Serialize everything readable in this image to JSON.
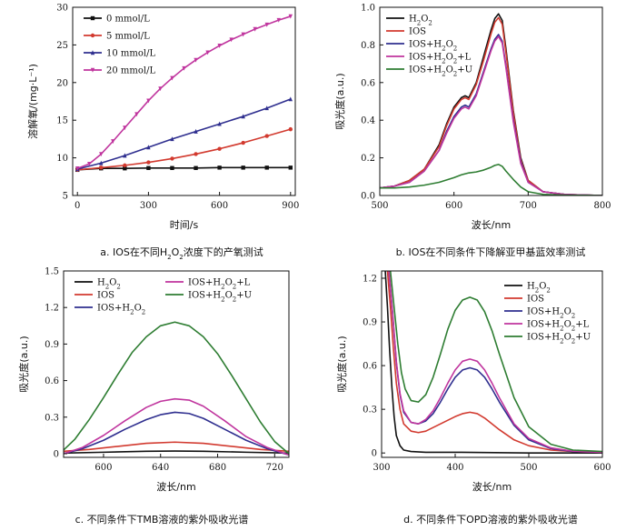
{
  "chart_data": [
    {
      "id": "a",
      "type": "line",
      "caption": "a. IOS在不同H₂O₂浓度下的产氧测试",
      "xlabel": "时间/s",
      "ylabel": "溶解氧/(mg·L⁻¹)",
      "xlim": [
        -20,
        920
      ],
      "ylim": [
        5,
        30
      ],
      "xticks": [
        0,
        300,
        600,
        900
      ],
      "yticks": [
        5,
        10,
        15,
        20,
        25,
        30
      ],
      "legend_position": "top-left",
      "series": [
        {
          "name": "0 mmol/L",
          "color": "#111111",
          "marker": "square",
          "x": [
            0,
            100,
            200,
            300,
            400,
            500,
            600,
            700,
            800,
            900
          ],
          "y": [
            8.4,
            8.6,
            8.6,
            8.65,
            8.65,
            8.65,
            8.7,
            8.7,
            8.7,
            8.7
          ]
        },
        {
          "name": "5 mmol/L",
          "color": "#d23a2f",
          "marker": "circle",
          "x": [
            0,
            100,
            200,
            300,
            400,
            500,
            600,
            700,
            800,
            900
          ],
          "y": [
            8.4,
            8.7,
            9.0,
            9.4,
            9.9,
            10.5,
            11.2,
            12.0,
            12.9,
            13.8
          ]
        },
        {
          "name": "10 mmol/L",
          "color": "#2f2f8f",
          "marker": "triangle",
          "x": [
            0,
            100,
            200,
            300,
            400,
            500,
            600,
            700,
            800,
            900
          ],
          "y": [
            8.5,
            9.3,
            10.3,
            11.4,
            12.5,
            13.5,
            14.5,
            15.5,
            16.6,
            17.8
          ]
        },
        {
          "name": "20 mmol/L",
          "color": "#c0359e",
          "marker": "triangle-down",
          "x": [
            0,
            50,
            100,
            150,
            200,
            250,
            300,
            350,
            400,
            450,
            500,
            550,
            600,
            650,
            700,
            750,
            800,
            850,
            900
          ],
          "y": [
            8.6,
            9.2,
            10.5,
            12.2,
            14.0,
            15.8,
            17.6,
            19.2,
            20.6,
            21.9,
            23.0,
            24.0,
            24.9,
            25.7,
            26.4,
            27.1,
            27.7,
            28.3,
            28.8
          ]
        }
      ]
    },
    {
      "id": "b",
      "type": "line",
      "caption": "b. IOS在不同条件下降解亚甲基蓝效率测试",
      "xlabel": "波长/nm",
      "ylabel": "吸光度(a.u.)",
      "xlim": [
        500,
        800
      ],
      "ylim": [
        0,
        1.0
      ],
      "xticks": [
        500,
        600,
        700,
        800
      ],
      "yticks": [
        0,
        0.2,
        0.4,
        0.6,
        0.8,
        1.0
      ],
      "legend_position": "top-left",
      "series": [
        {
          "name": "H₂O₂",
          "color": "#111111",
          "x": [
            500,
            520,
            540,
            560,
            580,
            590,
            600,
            610,
            615,
            620,
            630,
            640,
            650,
            655,
            660,
            665,
            670,
            680,
            690,
            700,
            720,
            750,
            800
          ],
          "y": [
            0.04,
            0.05,
            0.08,
            0.14,
            0.27,
            0.38,
            0.47,
            0.52,
            0.53,
            0.52,
            0.6,
            0.74,
            0.88,
            0.94,
            0.965,
            0.93,
            0.78,
            0.45,
            0.2,
            0.08,
            0.02,
            0.005,
            0.0
          ]
        },
        {
          "name": "IOS",
          "color": "#d23a2f",
          "x": [
            500,
            520,
            540,
            560,
            580,
            590,
            600,
            610,
            615,
            620,
            630,
            640,
            650,
            655,
            660,
            665,
            670,
            680,
            690,
            700,
            720,
            750,
            800
          ],
          "y": [
            0.04,
            0.05,
            0.08,
            0.14,
            0.26,
            0.37,
            0.46,
            0.51,
            0.52,
            0.51,
            0.59,
            0.72,
            0.86,
            0.92,
            0.945,
            0.91,
            0.76,
            0.44,
            0.19,
            0.08,
            0.02,
            0.005,
            0.0
          ]
        },
        {
          "name": "IOS+H₂O₂",
          "color": "#2f2f8f",
          "x": [
            500,
            520,
            540,
            560,
            580,
            590,
            600,
            610,
            615,
            620,
            630,
            640,
            650,
            655,
            660,
            665,
            670,
            680,
            690,
            700,
            720,
            750,
            800
          ],
          "y": [
            0.04,
            0.05,
            0.07,
            0.13,
            0.24,
            0.34,
            0.42,
            0.47,
            0.48,
            0.47,
            0.54,
            0.66,
            0.78,
            0.83,
            0.855,
            0.82,
            0.69,
            0.4,
            0.18,
            0.07,
            0.02,
            0.005,
            0.0
          ]
        },
        {
          "name": "IOS+H₂O₂+L",
          "color": "#c0359e",
          "x": [
            500,
            520,
            540,
            560,
            580,
            590,
            600,
            610,
            615,
            620,
            630,
            640,
            650,
            655,
            660,
            665,
            670,
            680,
            690,
            700,
            720,
            750,
            800
          ],
          "y": [
            0.04,
            0.05,
            0.07,
            0.13,
            0.24,
            0.33,
            0.41,
            0.46,
            0.47,
            0.46,
            0.53,
            0.65,
            0.77,
            0.82,
            0.845,
            0.81,
            0.68,
            0.39,
            0.17,
            0.07,
            0.02,
            0.005,
            0.0
          ]
        },
        {
          "name": "IOS+H₂O₂+U",
          "color": "#2e7d32",
          "x": [
            500,
            520,
            540,
            560,
            580,
            600,
            610,
            620,
            630,
            640,
            650,
            655,
            660,
            665,
            670,
            680,
            690,
            700,
            720,
            750,
            800
          ],
          "y": [
            0.04,
            0.04,
            0.045,
            0.055,
            0.07,
            0.095,
            0.11,
            0.12,
            0.125,
            0.135,
            0.15,
            0.16,
            0.165,
            0.155,
            0.13,
            0.085,
            0.045,
            0.02,
            0.006,
            0.002,
            0.0
          ]
        }
      ]
    },
    {
      "id": "c",
      "type": "line",
      "caption": "c. 不同条件下TMB溶液的紫外吸收光谱",
      "xlabel": "波长/nm",
      "ylabel": "吸光度(a.u.)",
      "xlim": [
        572,
        730
      ],
      "ylim": [
        -0.03,
        1.5
      ],
      "xticks": [
        600,
        640,
        680,
        720
      ],
      "yticks": [
        0,
        0.3,
        0.6,
        0.9,
        1.2,
        1.5
      ],
      "legend_position": "top",
      "series": [
        {
          "name": "H₂O₂",
          "color": "#111111",
          "x": [
            572,
            600,
            630,
            650,
            670,
            700,
            730
          ],
          "y": [
            0.005,
            0.012,
            0.02,
            0.022,
            0.02,
            0.012,
            0.005
          ]
        },
        {
          "name": "IOS",
          "color": "#d23a2f",
          "x": [
            572,
            590,
            610,
            630,
            650,
            670,
            690,
            710,
            730
          ],
          "y": [
            0.02,
            0.035,
            0.06,
            0.085,
            0.095,
            0.085,
            0.06,
            0.035,
            0.02
          ]
        },
        {
          "name": "IOS+H₂O₂",
          "color": "#2f2f8f",
          "x": [
            572,
            585,
            600,
            615,
            630,
            640,
            650,
            660,
            670,
            685,
            700,
            715,
            730
          ],
          "y": [
            0.0,
            0.04,
            0.11,
            0.2,
            0.28,
            0.32,
            0.34,
            0.33,
            0.29,
            0.2,
            0.11,
            0.04,
            -0.01
          ]
        },
        {
          "name": "IOS+H₂O₂+L",
          "color": "#c0359e",
          "x": [
            572,
            585,
            600,
            615,
            630,
            640,
            650,
            660,
            670,
            685,
            700,
            715,
            730
          ],
          "y": [
            0.0,
            0.05,
            0.15,
            0.27,
            0.38,
            0.43,
            0.45,
            0.44,
            0.39,
            0.27,
            0.14,
            0.05,
            -0.01
          ]
        },
        {
          "name": "IOS+H₂O₂+U",
          "color": "#2e7d32",
          "x": [
            572,
            580,
            590,
            600,
            610,
            620,
            630,
            640,
            650,
            660,
            670,
            680,
            690,
            700,
            710,
            720,
            730
          ],
          "y": [
            0.03,
            0.12,
            0.28,
            0.46,
            0.65,
            0.83,
            0.96,
            1.05,
            1.08,
            1.05,
            0.96,
            0.82,
            0.64,
            0.45,
            0.26,
            0.1,
            0.0
          ]
        }
      ]
    },
    {
      "id": "d",
      "type": "line",
      "caption": "d. 不同条件下OPD溶液的紫外吸收光谱",
      "xlabel": "波长/nm",
      "ylabel": "吸光度(a.u.)",
      "xlim": [
        300,
        600
      ],
      "ylim": [
        -0.03,
        1.25
      ],
      "xticks": [
        300,
        400,
        500,
        600
      ],
      "yticks": [
        0,
        0.3,
        0.6,
        0.9,
        1.2
      ],
      "legend_position": "top-right",
      "series": [
        {
          "name": "H₂O₂",
          "color": "#111111",
          "x": [
            305,
            308,
            311,
            314,
            317,
            320,
            325,
            330,
            340,
            360,
            400,
            500,
            600
          ],
          "y": [
            1.25,
            1.0,
            0.7,
            0.45,
            0.25,
            0.12,
            0.05,
            0.02,
            0.01,
            0.005,
            0.005,
            0.0,
            0.0
          ]
        },
        {
          "name": "IOS",
          "color": "#d23a2f",
          "x": [
            308,
            312,
            316,
            320,
            325,
            330,
            340,
            350,
            360,
            380,
            400,
            410,
            420,
            430,
            440,
            460,
            480,
            500,
            530,
            560,
            600
          ],
          "y": [
            1.25,
            1.0,
            0.72,
            0.48,
            0.3,
            0.2,
            0.15,
            0.14,
            0.15,
            0.2,
            0.25,
            0.27,
            0.28,
            0.27,
            0.24,
            0.16,
            0.09,
            0.05,
            0.02,
            0.01,
            0.005
          ]
        },
        {
          "name": "IOS+H₂O₂",
          "color": "#2f2f8f",
          "x": [
            310,
            315,
            320,
            325,
            330,
            340,
            350,
            360,
            370,
            380,
            390,
            400,
            410,
            420,
            430,
            440,
            450,
            460,
            480,
            500,
            530,
            560,
            600
          ],
          "y": [
            1.25,
            0.95,
            0.62,
            0.4,
            0.28,
            0.21,
            0.2,
            0.22,
            0.27,
            0.35,
            0.44,
            0.52,
            0.57,
            0.585,
            0.57,
            0.52,
            0.44,
            0.35,
            0.19,
            0.09,
            0.03,
            0.01,
            0.005
          ]
        },
        {
          "name": "IOS+H₂O₂+L",
          "color": "#c0359e",
          "x": [
            310,
            315,
            320,
            325,
            330,
            340,
            350,
            360,
            370,
            380,
            390,
            400,
            410,
            420,
            430,
            440,
            450,
            460,
            480,
            500,
            530,
            560,
            600
          ],
          "y": [
            1.25,
            0.96,
            0.63,
            0.41,
            0.29,
            0.21,
            0.2,
            0.23,
            0.29,
            0.38,
            0.48,
            0.57,
            0.63,
            0.645,
            0.63,
            0.57,
            0.48,
            0.38,
            0.2,
            0.1,
            0.035,
            0.012,
            0.005
          ]
        },
        {
          "name": "IOS+H₂O₂+U",
          "color": "#2e7d32",
          "x": [
            312,
            317,
            322,
            327,
            332,
            340,
            350,
            360,
            370,
            380,
            390,
            400,
            410,
            420,
            430,
            440,
            450,
            460,
            480,
            500,
            530,
            560,
            600
          ],
          "y": [
            1.25,
            1.0,
            0.75,
            0.55,
            0.44,
            0.36,
            0.35,
            0.4,
            0.52,
            0.68,
            0.85,
            0.98,
            1.05,
            1.07,
            1.05,
            0.97,
            0.84,
            0.68,
            0.38,
            0.18,
            0.06,
            0.02,
            0.01
          ]
        }
      ]
    }
  ]
}
